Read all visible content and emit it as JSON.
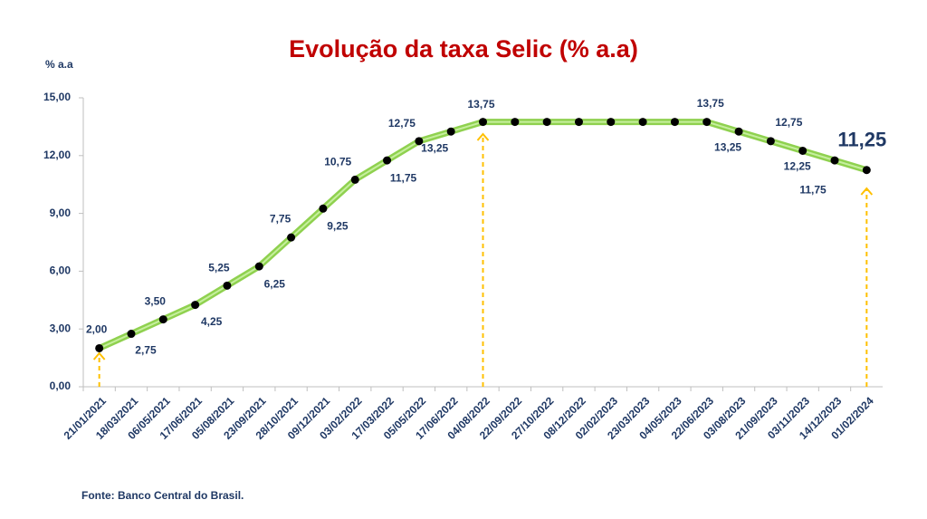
{
  "chart_data": {
    "type": "line",
    "title": "Evolução da taxa Selic (% a.a)",
    "y_label": "% a.a",
    "source": "Fonte: Banco Central do Brasil.",
    "categories": [
      "21/01/2021",
      "18/03/2021",
      "06/05/2021",
      "17/06/2021",
      "05/08/2021",
      "23/09/2021",
      "28/10/2021",
      "09/12/2021",
      "03/02/2022",
      "17/03/2022",
      "05/05/2022",
      "17/06/2022",
      "04/08/2022",
      "22/09/2022",
      "27/10/2022",
      "08/12/2022",
      "02/02/2023",
      "23/03/2023",
      "04/05/2023",
      "22/06/2023",
      "03/08/2023",
      "21/09/2023",
      "03/11/2023",
      "14/12/2023",
      "01/02/2024"
    ],
    "series": [
      {
        "name": "Selic",
        "color": "#8fd14f",
        "values": [
          2.0,
          2.75,
          3.5,
          4.25,
          5.25,
          6.25,
          7.75,
          9.25,
          10.75,
          11.75,
          12.75,
          13.25,
          13.75,
          13.75,
          13.75,
          13.75,
          13.75,
          13.75,
          13.75,
          13.75,
          13.25,
          12.75,
          12.25,
          11.75,
          11.25
        ],
        "value_labels": [
          "2,00",
          "2,75",
          "3,50",
          "4,25",
          "5,25",
          "6,25",
          "7,75",
          "9,25",
          "10,75",
          "11,75",
          "12,75",
          "13,25",
          "13,75",
          null,
          null,
          null,
          null,
          null,
          null,
          "13,75",
          "13,25",
          "12,75",
          "12,25",
          "11,75",
          "11,25"
        ]
      }
    ],
    "ylim": [
      0,
      15
    ],
    "yticks": [
      {
        "value": 0,
        "label": "0,00"
      },
      {
        "value": 3,
        "label": "3,00"
      },
      {
        "value": 6,
        "label": "6,00"
      },
      {
        "value": 9,
        "label": "9,00"
      },
      {
        "value": 12,
        "label": "12,00"
      },
      {
        "value": 15,
        "label": "15,00"
      }
    ]
  }
}
